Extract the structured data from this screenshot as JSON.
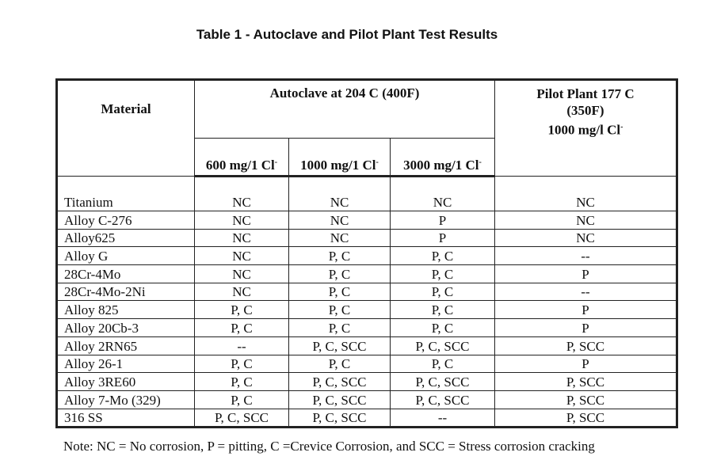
{
  "title": "Table 1 - Autoclave and Pilot Plant Test Results",
  "header": {
    "material": "Material",
    "autoclave": "Autoclave at 204 C (400F)",
    "pilot_line1": "Pilot Plant 177 C",
    "pilot_line2": "(350F)",
    "pilot_line3": "1000 mg/l Cl",
    "sub": [
      "600 mg/1 Cl",
      "1000 mg/1 Cl",
      "3000 mg/1 Cl"
    ],
    "cl_sup": "-"
  },
  "rows": [
    [
      "Titanium",
      "NC",
      "NC",
      "NC",
      "NC"
    ],
    [
      "Alloy C-276",
      "NC",
      "NC",
      "P",
      "NC"
    ],
    [
      "Alloy625",
      "NC",
      "NC",
      "P",
      "NC"
    ],
    [
      "Alloy G",
      "NC",
      "P, C",
      "P, C",
      "--"
    ],
    [
      "28Cr-4Mo",
      "NC",
      "P, C",
      "P, C",
      "P"
    ],
    [
      "28Cr-4Mo-2Ni",
      "NC",
      "P, C",
      "P, C",
      "--"
    ],
    [
      "Alloy 825",
      "P, C",
      "P, C",
      "P, C",
      "P"
    ],
    [
      "Alloy 20Cb-3",
      "P, C",
      "P, C",
      "P, C",
      "P"
    ],
    [
      "Alloy 2RN65",
      "--",
      "P, C, SCC",
      "P, C, SCC",
      "P, SCC"
    ],
    [
      "Alloy 26-1",
      "P, C",
      "P, C",
      "P, C",
      "P"
    ],
    [
      "Alloy 3RE60",
      "P, C",
      "P, C, SCC",
      "P, C, SCC",
      "P, SCC"
    ],
    [
      "Alloy 7-Mo (329)",
      "P, C",
      "P, C, SCC",
      "P, C, SCC",
      "P, SCC"
    ],
    [
      "316 SS",
      "P, C, SCC",
      "P, C, SCC",
      "--",
      "P, SCC"
    ]
  ],
  "note": "Note: NC = No corrosion, P = pitting, C =Crevice Corrosion, and SCC = Stress corrosion cracking"
}
